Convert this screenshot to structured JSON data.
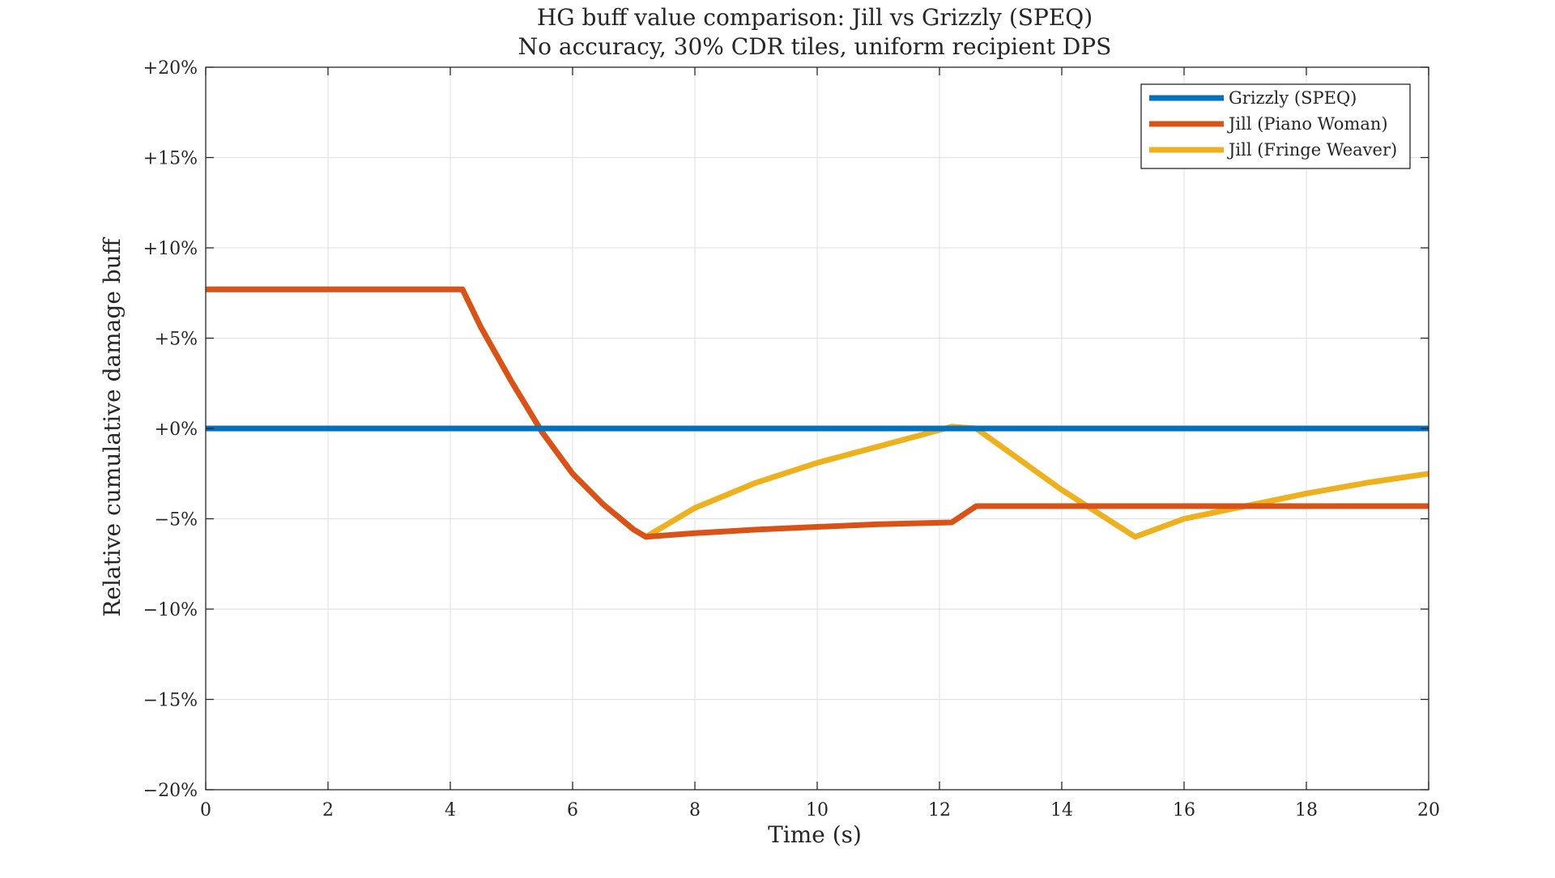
{
  "chart_data": {
    "type": "line",
    "title": "HG buff value comparison: Jill vs Grizzly (SPEQ)",
    "subtitle": "No accuracy, 30% CDR tiles, uniform recipient DPS",
    "xlabel": "Time (s)",
    "ylabel": "Relative cumulative damage buff",
    "xlim": [
      0,
      20
    ],
    "ylim": [
      -20,
      20
    ],
    "xticks": [
      0,
      2,
      4,
      6,
      8,
      10,
      12,
      14,
      16,
      18,
      20
    ],
    "xtick_labels": [
      "0",
      "2",
      "4",
      "6",
      "8",
      "10",
      "12",
      "14",
      "16",
      "18",
      "20"
    ],
    "yticks": [
      20,
      15,
      10,
      5,
      0,
      -5,
      -10,
      -15,
      -20
    ],
    "ytick_labels": [
      "+20%",
      "+15%",
      "+10%",
      "+5%",
      "+0%",
      "−5%",
      "−10%",
      "−15%",
      "−20%"
    ],
    "grid": true,
    "legend_position": "top-right",
    "series": [
      {
        "name": "Grizzly (SPEQ)",
        "color": "#0072BD",
        "points": [
          [
            0,
            0
          ],
          [
            20,
            0
          ]
        ]
      },
      {
        "name": "Jill (Piano Woman)",
        "color": "#D95319",
        "points": [
          [
            0,
            7.7
          ],
          [
            4.2,
            7.7
          ],
          [
            4.5,
            5.6
          ],
          [
            5.0,
            2.6
          ],
          [
            5.5,
            -0.2
          ],
          [
            6.0,
            -2.5
          ],
          [
            6.5,
            -4.2
          ],
          [
            7.0,
            -5.6
          ],
          [
            7.2,
            -6.0
          ],
          [
            8,
            -5.8
          ],
          [
            9,
            -5.6
          ],
          [
            10,
            -5.45
          ],
          [
            11,
            -5.3
          ],
          [
            12.2,
            -5.2
          ],
          [
            12.6,
            -4.3
          ],
          [
            20,
            -4.3
          ]
        ]
      },
      {
        "name": "Jill (Fringe Weaver)",
        "color": "#EDB120",
        "points": [
          [
            0,
            7.7
          ],
          [
            4.2,
            7.7
          ],
          [
            4.5,
            5.6
          ],
          [
            5.0,
            2.6
          ],
          [
            5.5,
            -0.2
          ],
          [
            6.0,
            -2.5
          ],
          [
            6.5,
            -4.2
          ],
          [
            7.0,
            -5.6
          ],
          [
            7.2,
            -6.0
          ],
          [
            8,
            -4.4
          ],
          [
            9,
            -3.0
          ],
          [
            10,
            -1.9
          ],
          [
            11,
            -1.0
          ],
          [
            12.2,
            0.1
          ],
          [
            12.6,
            0.0
          ],
          [
            14,
            -3.4
          ],
          [
            15.2,
            -6.0
          ],
          [
            16,
            -5.0
          ],
          [
            17,
            -4.3
          ],
          [
            18,
            -3.6
          ],
          [
            19,
            -3.0
          ],
          [
            20,
            -2.5
          ]
        ]
      }
    ]
  }
}
